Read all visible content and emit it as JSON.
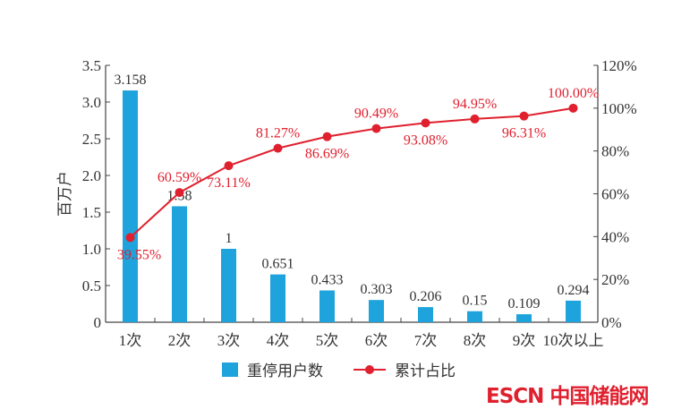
{
  "chart_data": {
    "type": "bar+line",
    "categories": [
      "1次",
      "2次",
      "3次",
      "4次",
      "5次",
      "6次",
      "7次",
      "8次",
      "9次",
      "10次以上"
    ],
    "series": [
      {
        "name": "重停用户数",
        "type": "bar",
        "axis": "left",
        "color": "#1ea3dc",
        "values": [
          3.158,
          1.58,
          1,
          0.651,
          0.433,
          0.303,
          0.206,
          0.15,
          0.109,
          0.294
        ],
        "labels": [
          "3.158",
          "1.58",
          "1",
          "0.651",
          "0.433",
          "0.303",
          "0.206",
          "0.15",
          "0.109",
          "0.294"
        ]
      },
      {
        "name": "累计占比",
        "type": "line",
        "axis": "right",
        "color": "#e0202e",
        "values": [
          39.55,
          60.59,
          73.11,
          81.27,
          86.69,
          90.49,
          93.08,
          94.95,
          96.31,
          100.0
        ],
        "labels": [
          "39.55%",
          "60.59%",
          "73.11%",
          "81.27%",
          "86.69%",
          "90.49%",
          "93.08%",
          "94.95%",
          "96.31%",
          "100.00%"
        ]
      }
    ],
    "ylabel": "百万户",
    "ylim": [
      0,
      3.5
    ],
    "yticks": [
      "0",
      "0.5",
      "1.0",
      "1.5",
      "2.0",
      "2.5",
      "3.0",
      "3.5"
    ],
    "y2lim": [
      0,
      120
    ],
    "y2ticks": [
      "0%",
      "20%",
      "40%",
      "60%",
      "80%",
      "100%",
      "120%"
    ],
    "grid": false,
    "legend": "bottom"
  },
  "watermark": "ESCN 中国储能网"
}
